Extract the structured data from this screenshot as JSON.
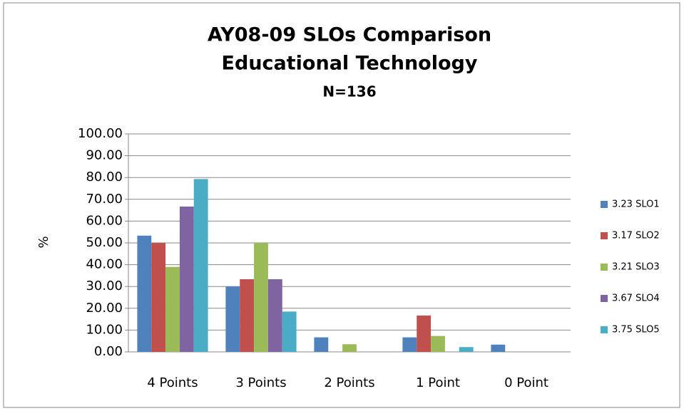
{
  "chart_data": {
    "type": "bar",
    "title": [
      "AY08-09 SLOs Comparison",
      "Educational Technology"
    ],
    "subtitle": "N=136",
    "y_label": "%",
    "categories": [
      "4 Points",
      "3 Points",
      "2 Points",
      "1 Point",
      "0 Point"
    ],
    "series": [
      {
        "name": "3.23 SLO1",
        "color": "#4f81bd",
        "values": [
          53.33,
          30,
          6.67,
          6.67,
          3.33
        ]
      },
      {
        "name": "3.17 SLO2",
        "color": "#c0504d",
        "values": [
          50,
          33.33,
          0,
          16.67,
          0
        ]
      },
      {
        "name": "3.21 SLO3",
        "color": "#9bbb59",
        "values": [
          39,
          50,
          3.5,
          7.3,
          0
        ]
      },
      {
        "name": "3.67 SLO4",
        "color": "#8064a2",
        "values": [
          66.67,
          33.33,
          0,
          0,
          0
        ]
      },
      {
        "name": "3.75 SLO5",
        "color": "#4bacc6",
        "values": [
          79.3,
          18.5,
          0,
          2.2,
          0
        ]
      }
    ],
    "ylim": [
      0,
      100
    ],
    "yticks": [
      {
        "value": 0,
        "label": "0.00"
      },
      {
        "value": 10,
        "label": "10.00"
      },
      {
        "value": 20,
        "label": "20.00"
      },
      {
        "value": 30,
        "label": "30.00"
      },
      {
        "value": 40,
        "label": "40.00"
      },
      {
        "value": 50,
        "label": "50.00"
      },
      {
        "value": 60,
        "label": "60.00"
      },
      {
        "value": 70,
        "label": "70.00"
      },
      {
        "value": 80,
        "label": "80.00"
      },
      {
        "value": 90,
        "label": "90.00"
      },
      {
        "value": 100,
        "label": "100.00"
      }
    ],
    "grid": true,
    "legend": "right"
  }
}
